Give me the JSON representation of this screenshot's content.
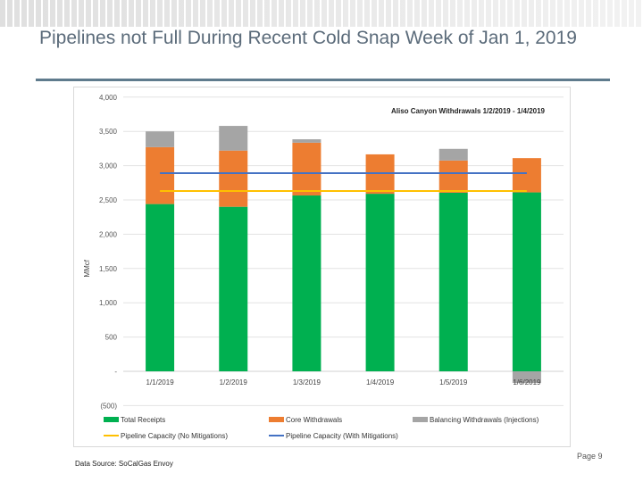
{
  "slide": {
    "title": "Pipelines not Full During Recent Cold Snap Week of Jan 1, 2019",
    "source": "Data Source: SoCalGas Envoy",
    "page": "Page 9"
  },
  "chart_data": {
    "type": "bar",
    "stacked": true,
    "annotation": "Aliso Canyon Withdrawals 1/2/2019 - 1/4/2019",
    "ylabel": "MMcf",
    "ylim": [
      -500,
      4000
    ],
    "yticks": [
      -500,
      0,
      500,
      1000,
      1500,
      2000,
      2500,
      3000,
      3500,
      4000
    ],
    "ytick_labels": [
      "(500)",
      "-",
      "500",
      "1,000",
      "1,500",
      "2,000",
      "2,500",
      "3,000",
      "3,500",
      "4,000"
    ],
    "grid": true,
    "legend_placement": "bottom",
    "categories": [
      "1/1/2019",
      "1/2/2019",
      "1/3/2019",
      "1/4/2019",
      "1/5/2019",
      "1/6/2019"
    ],
    "series": [
      {
        "name": "Total Receipts",
        "kind": "bar",
        "color": "#00b050",
        "values": [
          2440,
          2400,
          2565,
          2590,
          2605,
          2610
        ]
      },
      {
        "name": "Core Withdrawals",
        "kind": "bar",
        "color": "#ed7d31",
        "values": [
          830,
          820,
          770,
          575,
          470,
          500
        ]
      },
      {
        "name": "Balancing Withdrawals (Injections)",
        "kind": "bar",
        "color": "#a5a5a5",
        "values": [
          230,
          360,
          50,
          0,
          170,
          -170
        ]
      },
      {
        "name": "Pipeline Capacity (No Mitigations)",
        "kind": "line",
        "color": "#ffc000",
        "values": [
          2630,
          2630,
          2630,
          2630,
          2630,
          2630
        ]
      },
      {
        "name": "Pipeline Capacity (With Mitigations)",
        "kind": "line",
        "color": "#4472c4",
        "values": [
          2890,
          2890,
          2890,
          2890,
          2890,
          2890
        ]
      }
    ]
  }
}
